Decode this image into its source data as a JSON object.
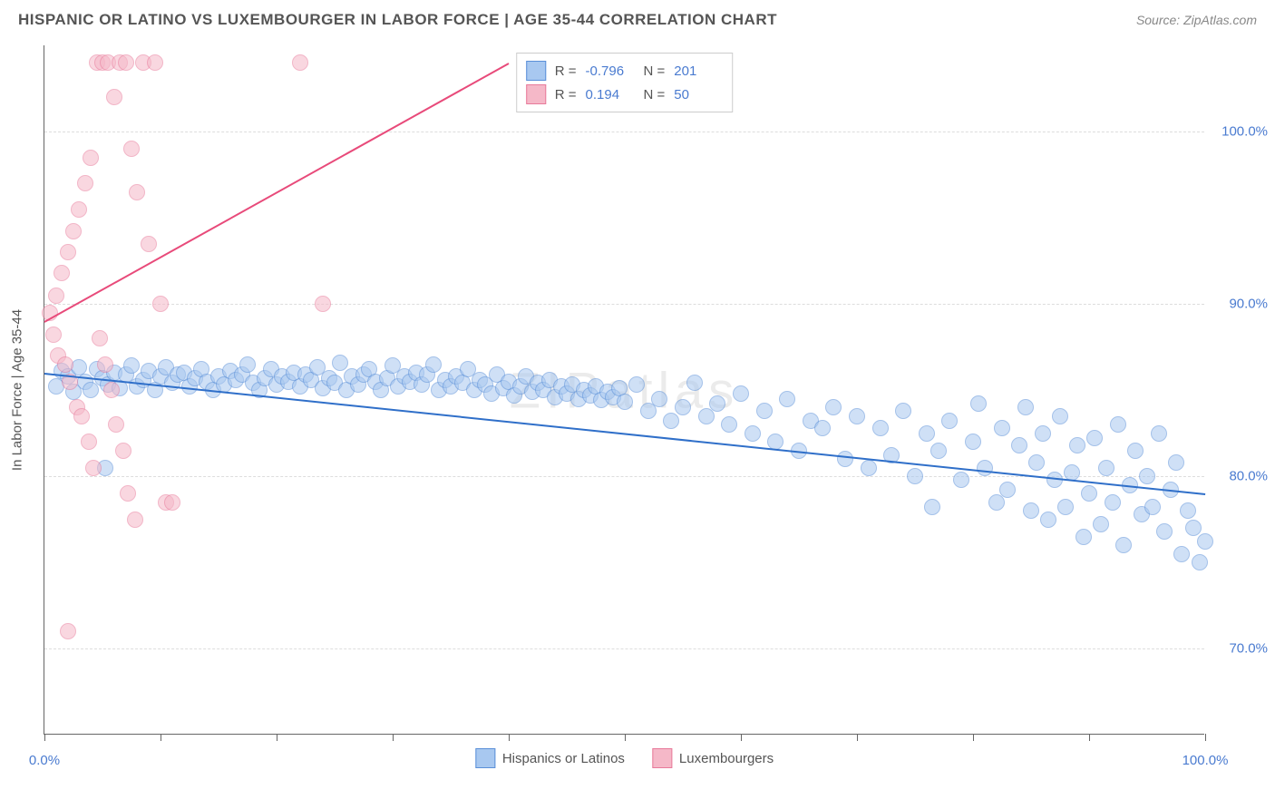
{
  "title": "HISPANIC OR LATINO VS LUXEMBOURGER IN LABOR FORCE | AGE 35-44 CORRELATION CHART",
  "source": "Source: ZipAtlas.com",
  "watermark": "ZIPatlas",
  "chart": {
    "type": "scatter",
    "y_axis_title": "In Labor Force | Age 35-44",
    "background_color": "#ffffff",
    "grid_color": "#dddddd",
    "axis_color": "#666666",
    "tick_label_color": "#4a7bd0",
    "xlim": [
      0,
      100
    ],
    "ylim": [
      65,
      105
    ],
    "x_ticks": [
      0,
      10,
      20,
      30,
      40,
      50,
      60,
      70,
      80,
      90,
      100
    ],
    "x_tick_labels": {
      "0": "0.0%",
      "100": "100.0%"
    },
    "y_ticks": [
      70,
      80,
      90,
      100
    ],
    "y_tick_labels": {
      "70": "70.0%",
      "80": "80.0%",
      "90": "90.0%",
      "100": "100.0%"
    },
    "marker_radius": 9,
    "marker_opacity": 0.55,
    "marker_border_width": 1.5,
    "series": [
      {
        "name": "Hispanics or Latinos",
        "color_fill": "#a8c8f0",
        "color_border": "#5a8fd8",
        "line_color": "#2f6fc9",
        "R": -0.796,
        "N": 201,
        "trend": {
          "x1": 0,
          "y1": 86.0,
          "x2": 100,
          "y2": 79.0
        },
        "points": [
          [
            1,
            85.2
          ],
          [
            1.5,
            86.1
          ],
          [
            2,
            85.8
          ],
          [
            2.5,
            84.9
          ],
          [
            3,
            86.3
          ],
          [
            3.5,
            85.5
          ],
          [
            4,
            85.0
          ],
          [
            4.5,
            86.2
          ],
          [
            5,
            85.7
          ],
          [
            5.2,
            80.5
          ],
          [
            5.5,
            85.3
          ],
          [
            6,
            86.0
          ],
          [
            6.5,
            85.1
          ],
          [
            7,
            85.9
          ],
          [
            7.5,
            86.4
          ],
          [
            8,
            85.2
          ],
          [
            8.5,
            85.6
          ],
          [
            9,
            86.1
          ],
          [
            9.5,
            85.0
          ],
          [
            10,
            85.8
          ],
          [
            10.5,
            86.3
          ],
          [
            11,
            85.4
          ],
          [
            11.5,
            85.9
          ],
          [
            12,
            86.0
          ],
          [
            12.5,
            85.2
          ],
          [
            13,
            85.7
          ],
          [
            13.5,
            86.2
          ],
          [
            14,
            85.5
          ],
          [
            14.5,
            85.0
          ],
          [
            15,
            85.8
          ],
          [
            15.5,
            85.3
          ],
          [
            16,
            86.1
          ],
          [
            16.5,
            85.6
          ],
          [
            17,
            85.9
          ],
          [
            17.5,
            86.5
          ],
          [
            18,
            85.4
          ],
          [
            18.5,
            85.0
          ],
          [
            19,
            85.7
          ],
          [
            19.5,
            86.2
          ],
          [
            20,
            85.3
          ],
          [
            20.5,
            85.8
          ],
          [
            21,
            85.5
          ],
          [
            21.5,
            86.0
          ],
          [
            22,
            85.2
          ],
          [
            22.5,
            85.9
          ],
          [
            23,
            85.6
          ],
          [
            23.5,
            86.3
          ],
          [
            24,
            85.1
          ],
          [
            24.5,
            85.7
          ],
          [
            25,
            85.4
          ],
          [
            25.5,
            86.6
          ],
          [
            26,
            85.0
          ],
          [
            26.5,
            85.8
          ],
          [
            27,
            85.3
          ],
          [
            27.5,
            85.9
          ],
          [
            28,
            86.2
          ],
          [
            28.5,
            85.5
          ],
          [
            29,
            85.0
          ],
          [
            29.5,
            85.7
          ],
          [
            30,
            86.4
          ],
          [
            30.5,
            85.2
          ],
          [
            31,
            85.8
          ],
          [
            31.5,
            85.5
          ],
          [
            32,
            86.0
          ],
          [
            32.5,
            85.3
          ],
          [
            33,
            85.9
          ],
          [
            33.5,
            86.5
          ],
          [
            34,
            85.0
          ],
          [
            34.5,
            85.6
          ],
          [
            35,
            85.2
          ],
          [
            35.5,
            85.8
          ],
          [
            36,
            85.4
          ],
          [
            36.5,
            86.2
          ],
          [
            37,
            85.0
          ],
          [
            37.5,
            85.6
          ],
          [
            38,
            85.3
          ],
          [
            38.5,
            84.8
          ],
          [
            39,
            85.9
          ],
          [
            39.5,
            85.1
          ],
          [
            40,
            85.5
          ],
          [
            40.5,
            84.7
          ],
          [
            41,
            85.2
          ],
          [
            41.5,
            85.8
          ],
          [
            42,
            84.9
          ],
          [
            42.5,
            85.4
          ],
          [
            43,
            85.0
          ],
          [
            43.5,
            85.6
          ],
          [
            44,
            84.6
          ],
          [
            44.5,
            85.2
          ],
          [
            45,
            84.8
          ],
          [
            45.5,
            85.3
          ],
          [
            46,
            84.5
          ],
          [
            46.5,
            85.0
          ],
          [
            47,
            84.7
          ],
          [
            47.5,
            85.2
          ],
          [
            48,
            84.4
          ],
          [
            48.5,
            84.9
          ],
          [
            49,
            84.6
          ],
          [
            49.5,
            85.1
          ],
          [
            50,
            84.3
          ],
          [
            51,
            85.3
          ],
          [
            52,
            83.8
          ],
          [
            53,
            84.5
          ],
          [
            54,
            83.2
          ],
          [
            55,
            84.0
          ],
          [
            56,
            85.4
          ],
          [
            57,
            83.5
          ],
          [
            58,
            84.2
          ],
          [
            59,
            83.0
          ],
          [
            60,
            84.8
          ],
          [
            61,
            82.5
          ],
          [
            62,
            83.8
          ],
          [
            63,
            82.0
          ],
          [
            64,
            84.5
          ],
          [
            65,
            81.5
          ],
          [
            66,
            83.2
          ],
          [
            67,
            82.8
          ],
          [
            68,
            84.0
          ],
          [
            69,
            81.0
          ],
          [
            70,
            83.5
          ],
          [
            71,
            80.5
          ],
          [
            72,
            82.8
          ],
          [
            73,
            81.2
          ],
          [
            74,
            83.8
          ],
          [
            75,
            80.0
          ],
          [
            76,
            82.5
          ],
          [
            76.5,
            78.2
          ],
          [
            77,
            81.5
          ],
          [
            78,
            83.2
          ],
          [
            79,
            79.8
          ],
          [
            80,
            82.0
          ],
          [
            80.5,
            84.2
          ],
          [
            81,
            80.5
          ],
          [
            82,
            78.5
          ],
          [
            82.5,
            82.8
          ],
          [
            83,
            79.2
          ],
          [
            84,
            81.8
          ],
          [
            84.5,
            84.0
          ],
          [
            85,
            78.0
          ],
          [
            85.5,
            80.8
          ],
          [
            86,
            82.5
          ],
          [
            86.5,
            77.5
          ],
          [
            87,
            79.8
          ],
          [
            87.5,
            83.5
          ],
          [
            88,
            78.2
          ],
          [
            88.5,
            80.2
          ],
          [
            89,
            81.8
          ],
          [
            89.5,
            76.5
          ],
          [
            90,
            79.0
          ],
          [
            90.5,
            82.2
          ],
          [
            91,
            77.2
          ],
          [
            91.5,
            80.5
          ],
          [
            92,
            78.5
          ],
          [
            92.5,
            83.0
          ],
          [
            93,
            76.0
          ],
          [
            93.5,
            79.5
          ],
          [
            94,
            81.5
          ],
          [
            94.5,
            77.8
          ],
          [
            95,
            80.0
          ],
          [
            95.5,
            78.2
          ],
          [
            96,
            82.5
          ],
          [
            96.5,
            76.8
          ],
          [
            97,
            79.2
          ],
          [
            97.5,
            80.8
          ],
          [
            98,
            75.5
          ],
          [
            98.5,
            78.0
          ],
          [
            99,
            77.0
          ],
          [
            99.5,
            75.0
          ],
          [
            100,
            76.2
          ]
        ]
      },
      {
        "name": "Luxembourgers",
        "color_fill": "#f5b8c8",
        "color_border": "#e87a9a",
        "line_color": "#e84a7a",
        "R": 0.194,
        "N": 50,
        "trend": {
          "x1": 0,
          "y1": 89.0,
          "x2": 40,
          "y2": 104.0
        },
        "points": [
          [
            0.5,
            89.5
          ],
          [
            0.8,
            88.2
          ],
          [
            1,
            90.5
          ],
          [
            1.2,
            87.0
          ],
          [
            1.5,
            91.8
          ],
          [
            1.8,
            86.5
          ],
          [
            2,
            93.0
          ],
          [
            2.2,
            85.5
          ],
          [
            2.5,
            94.2
          ],
          [
            2.8,
            84.0
          ],
          [
            3,
            95.5
          ],
          [
            3.2,
            83.5
          ],
          [
            3.5,
            97.0
          ],
          [
            3.8,
            82.0
          ],
          [
            4,
            98.5
          ],
          [
            4.2,
            80.5
          ],
          [
            4.5,
            104.0
          ],
          [
            4.8,
            88.0
          ],
          [
            5,
            104.0
          ],
          [
            5.2,
            86.5
          ],
          [
            5.5,
            104.0
          ],
          [
            5.8,
            85.0
          ],
          [
            6,
            102.0
          ],
          [
            6.2,
            83.0
          ],
          [
            6.5,
            104.0
          ],
          [
            6.8,
            81.5
          ],
          [
            7,
            104.0
          ],
          [
            7.2,
            79.0
          ],
          [
            7.5,
            99.0
          ],
          [
            7.8,
            77.5
          ],
          [
            8,
            96.5
          ],
          [
            8.5,
            104.0
          ],
          [
            9,
            93.5
          ],
          [
            9.5,
            104.0
          ],
          [
            10,
            90.0
          ],
          [
            10.5,
            78.5
          ],
          [
            11,
            78.5
          ],
          [
            2,
            71.0
          ],
          [
            22,
            104.0
          ],
          [
            24,
            90.0
          ]
        ]
      }
    ],
    "stats_box": {
      "rows": [
        {
          "swatch_fill": "#a8c8f0",
          "swatch_border": "#5a8fd8",
          "R_label": "R =",
          "R": "-0.796",
          "N_label": "N =",
          "N": "201"
        },
        {
          "swatch_fill": "#f5b8c8",
          "swatch_border": "#e87a9a",
          "R_label": "R =",
          "R": "0.194",
          "N_label": "N =",
          "N": "50"
        }
      ]
    },
    "legend": [
      {
        "swatch_fill": "#a8c8f0",
        "swatch_border": "#5a8fd8",
        "label": "Hispanics or Latinos"
      },
      {
        "swatch_fill": "#f5b8c8",
        "swatch_border": "#e87a9a",
        "label": "Luxembourgers"
      }
    ]
  }
}
